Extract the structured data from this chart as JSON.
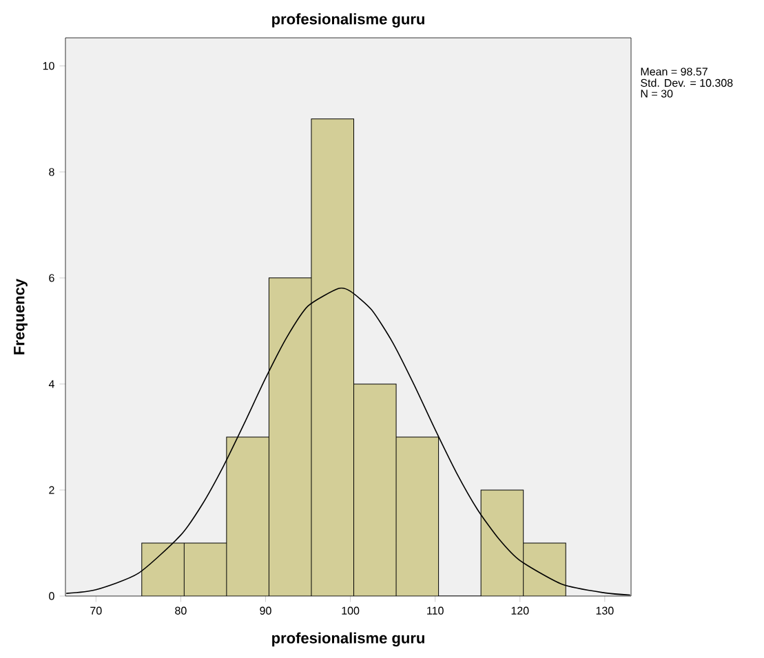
{
  "chart_data": {
    "type": "histogram",
    "title": "profesionalisme guru",
    "xlabel": "profesionalisme guru",
    "ylabel": "Frequency",
    "bins": [
      75.4,
      80.4,
      85.4,
      90.4,
      95.4,
      100.4,
      105.4,
      110.4,
      115.4,
      120.4,
      125.4
    ],
    "values": [
      1,
      1,
      3,
      6,
      9,
      4,
      3,
      0,
      2,
      1
    ],
    "color": "#d3ce97",
    "series": [
      {
        "type": "line",
        "color": "#000000",
        "x": [
          66.5,
          70,
          75,
          80,
          82.5,
          85,
          87.5,
          90,
          92.5,
          95,
          98.57,
          100,
          102.5,
          105,
          107.5,
          110,
          112.5,
          115,
          117.5,
          120,
          125,
          130,
          133
        ],
        "values": [
          0.05,
          0.12,
          0.43,
          1.15,
          1.72,
          2.44,
          3.26,
          4.11,
          4.88,
          5.47,
          5.8,
          5.75,
          5.4,
          4.78,
          3.99,
          3.14,
          2.33,
          1.63,
          1.08,
          0.67,
          0.22,
          0.06,
          0.02
        ]
      }
    ],
    "xlim": [
      66.4,
      133.1
    ],
    "ylim": [
      0,
      10.53
    ],
    "xticks": [
      70,
      80,
      90,
      100,
      110,
      120,
      130
    ],
    "yticks": [
      0,
      2,
      4,
      6,
      8,
      10
    ],
    "grid": false,
    "annotations": [
      "Mean = 98.57",
      "Std. Dev. = 10.308",
      "N = 30"
    ]
  }
}
